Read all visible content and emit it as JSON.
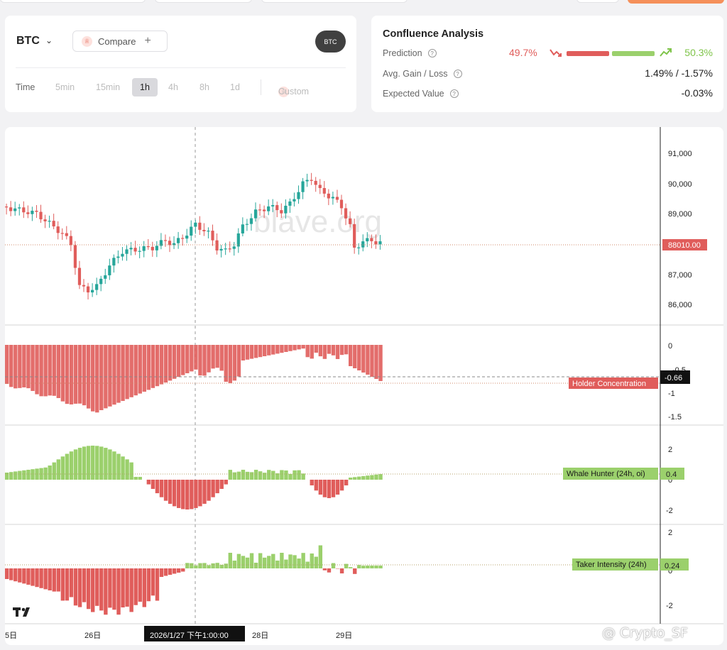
{
  "symbol": {
    "name": "BTC",
    "compare_label": "Compare",
    "badge": "BTC"
  },
  "timeframes": {
    "label": "Time",
    "options": [
      "5min",
      "15min",
      "1h",
      "4h",
      "8h",
      "1d"
    ],
    "active": "1h",
    "custom_label": "Custom"
  },
  "confluence": {
    "title": "Confluence Analysis",
    "prediction_label": "Prediction",
    "prediction_down": "49.7%",
    "prediction_up": "50.3%",
    "avg_label": "Avg. Gain / Loss",
    "avg_value": "1.49% / -1.57%",
    "ev_label": "Expected Value",
    "ev_value": "-0.03%"
  },
  "colors": {
    "up": "#26a69a",
    "down": "#e05d5b",
    "pos_hist": "#9bd06c",
    "neg_hist": "#e05d5b",
    "accent": "#f5905a"
  },
  "watermark": "blave.org",
  "price_pane": {
    "y_ticks": [
      "91,000",
      "90,000",
      "89,000",
      "87,000",
      "86,000"
    ],
    "last_price": "88010.00"
  },
  "holder_pane": {
    "label": "Holder Concentration",
    "value": "-0.66",
    "y_ticks": [
      "0",
      "-0.5",
      "-1",
      "-1.5"
    ]
  },
  "whale_pane": {
    "label": "Whale Hunter (24h, oi)",
    "value": "0.4",
    "y_ticks": [
      "2",
      "0",
      "-2"
    ]
  },
  "taker_pane": {
    "label": "Taker Intensity (24h)",
    "value": "0.24",
    "y_ticks": [
      "2",
      "0",
      "-2"
    ]
  },
  "x_axis": {
    "ticks": [
      "5日",
      "26日",
      "28日",
      "29日"
    ],
    "crosshair_label": "2026/1/27 下午1:00:00"
  },
  "credit": "@ Crypto_SF"
}
